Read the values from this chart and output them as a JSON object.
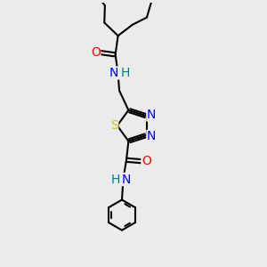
{
  "background_color": "#ebebeb",
  "line_color": "#000000",
  "atom_colors": {
    "N": "#0000ff",
    "O": "#ff0000",
    "S": "#cccc00",
    "H": "#008080",
    "C": "#000000"
  },
  "bond_width": 1.5,
  "font_size": 9,
  "figsize": [
    3.0,
    3.0
  ],
  "dpi": 100
}
